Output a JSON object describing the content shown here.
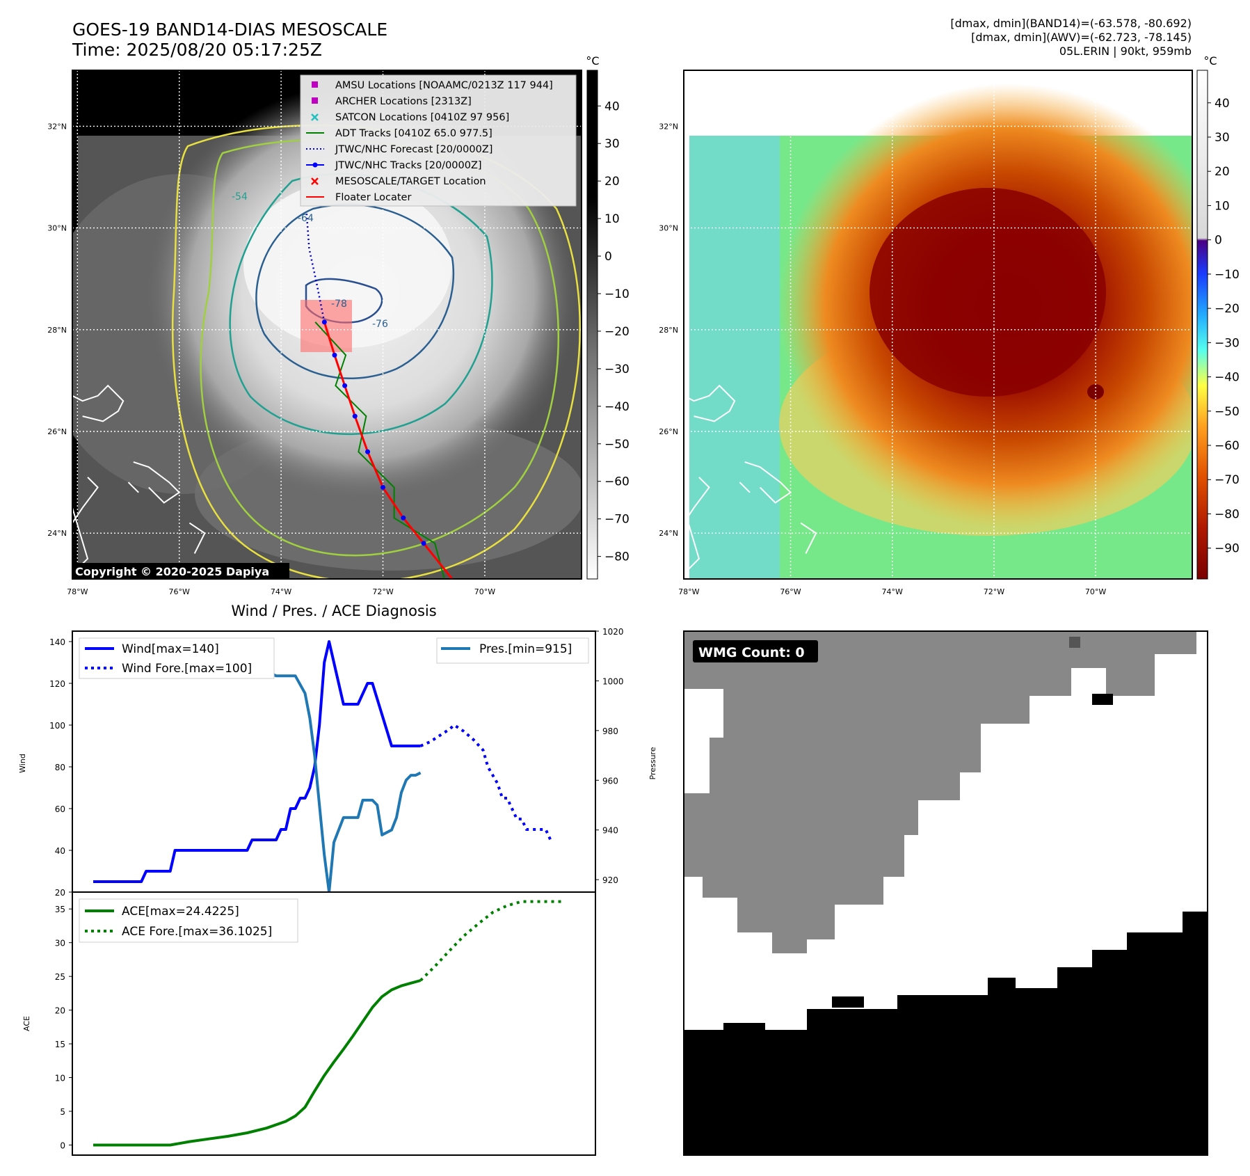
{
  "header": {
    "title_line1": "GOES-19 BAND14-DIAS MESOSCALE",
    "title_line2": "Time: 2025/08/20 05:17:25Z",
    "info_line1": "[dmax, dmin](BAND14)=(-63.578, -80.692)",
    "info_line2": "[dmax, dmin](AWV)=(-62.723, -78.145)",
    "info_line3": "05L.ERIN | 90kt, 959mb",
    "copyright": "Copyright © 2020-2025 Dapiya",
    "unit_left": "°C",
    "unit_right": "°C"
  },
  "map": {
    "lat_labels": [
      "32°N",
      "30°N",
      "28°N",
      "26°N",
      "24°N"
    ],
    "lat_values": [
      32,
      30,
      28,
      26,
      24
    ],
    "lon_labels": [
      "78°W",
      "76°W",
      "74°W",
      "72°W",
      "70°W"
    ],
    "lon_values": [
      -78,
      -76,
      -74,
      -72,
      -70
    ],
    "lon_range": [
      -78.1,
      -68.1
    ],
    "lat_range": [
      23.1,
      33.1
    ],
    "contour_labels": [
      "-54",
      "-64",
      "-76",
      "-78"
    ],
    "legend": [
      {
        "label": "AMSU Locations [NOAAMC/0213Z 117 944]",
        "marker": "square",
        "color": "#c000c0"
      },
      {
        "label": "ARCHER Locations [2313Z]",
        "marker": "square",
        "color": "#c000c0"
      },
      {
        "label": "SATCON Locations [0410Z 97 956]",
        "marker": "x",
        "color": "#20c0c0"
      },
      {
        "label": "ADT Tracks [0410Z 65.0 977.5]",
        "marker": "line",
        "color": "#008000"
      },
      {
        "label": "JTWC/NHC Forecast [20/0000Z]",
        "marker": "dotted",
        "color": "#0000cc"
      },
      {
        "label": "JTWC/NHC Tracks [20/0000Z]",
        "marker": "line-dot",
        "color": "#0000ff"
      },
      {
        "label": "MESOSCALE/TARGET Location",
        "marker": "x",
        "color": "#ff0000"
      },
      {
        "label": "Floater Locater",
        "marker": "line",
        "color": "#ff0000"
      }
    ],
    "colorbar_left_ticks": [
      "40",
      "30",
      "20",
      "10",
      "0",
      "−10",
      "−20",
      "−30",
      "−40",
      "−50",
      "−60",
      "−70",
      "−80"
    ],
    "colorbar_left_values": [
      40,
      30,
      20,
      10,
      0,
      -10,
      -20,
      -30,
      -40,
      -50,
      -60,
      -70,
      -80
    ],
    "colorbar_right_ticks": [
      "40",
      "30",
      "20",
      "10",
      "0",
      "−10",
      "−20",
      "−30",
      "−40",
      "−50",
      "−60",
      "−70",
      "−80",
      "−90"
    ],
    "colorbar_right_values": [
      40,
      30,
      20,
      10,
      0,
      -10,
      -20,
      -30,
      -40,
      -50,
      -60,
      -70,
      -80,
      -90
    ],
    "track": [
      [
        -70.6,
        23.05
      ],
      [
        -71.2,
        23.8
      ],
      [
        -71.6,
        24.3
      ],
      [
        -72.0,
        24.9
      ],
      [
        -72.3,
        25.6
      ],
      [
        -72.55,
        26.3
      ],
      [
        -72.75,
        26.9
      ],
      [
        -72.95,
        27.5
      ],
      [
        -73.15,
        28.15
      ]
    ],
    "forecast": [
      [
        -73.15,
        28.15
      ],
      [
        -73.3,
        28.9
      ],
      [
        -73.45,
        29.6
      ],
      [
        -73.5,
        30.3
      ]
    ]
  },
  "chart_data": [
    {
      "type": "line",
      "title": "Wind / Pres. / ACE Diagnosis",
      "xlabel": "",
      "ylabel": "Wind",
      "ylabel_right": "Pressure",
      "ylim": [
        20,
        145
      ],
      "ylim_right": [
        915,
        1020
      ],
      "yticks": [
        20,
        40,
        60,
        80,
        100,
        120,
        140
      ],
      "yticks_right": [
        920,
        940,
        960,
        980,
        1000,
        1020
      ],
      "x_range": [
        0,
        100
      ],
      "series": [
        {
          "name": "Wind[max=140]",
          "axis": "left",
          "style": "solid",
          "color": "#0000ff",
          "x": [
            0,
            10,
            11,
            16,
            17,
            21,
            22,
            32,
            33,
            38,
            39,
            40,
            41,
            42,
            43,
            44,
            45,
            46,
            47,
            48,
            49,
            50,
            52,
            53,
            54,
            55,
            57,
            58,
            60,
            62,
            64,
            66,
            68
          ],
          "y": [
            25,
            25,
            30,
            30,
            40,
            40,
            40,
            40,
            45,
            45,
            50,
            50,
            60,
            60,
            65,
            65,
            70,
            80,
            100,
            130,
            140,
            130,
            110,
            110,
            110,
            110,
            120,
            120,
            105,
            90,
            90,
            90,
            90
          ]
        },
        {
          "name": "Wind Fore.[max=100]",
          "axis": "left",
          "style": "dotted",
          "color": "#0000ff",
          "x": [
            68,
            70,
            72,
            74,
            75,
            77,
            79,
            81,
            82,
            84,
            85,
            86,
            88,
            89,
            90,
            92,
            94,
            95
          ],
          "y": [
            90,
            92,
            95,
            98,
            100,
            97,
            93,
            88,
            80,
            72,
            65,
            65,
            55,
            55,
            50,
            50,
            50,
            45
          ]
        },
        {
          "name": "Pres.[min=915]",
          "axis": "right",
          "style": "solid",
          "color": "#1f77b4",
          "x": [
            0,
            2,
            3,
            5,
            7,
            9,
            12,
            15,
            18,
            21,
            24,
            27,
            30,
            33,
            36,
            38,
            40,
            42,
            44,
            45,
            46,
            47,
            48,
            49,
            50,
            51,
            52,
            53,
            55,
            56,
            57,
            58,
            59,
            60,
            62,
            63,
            64,
            65,
            66,
            67,
            68
          ],
          "y": [
            1015,
            1015,
            1011,
            1010,
            1009,
            1009,
            1009,
            1008,
            1008,
            1008,
            1008,
            1007,
            1006,
            1004,
            1004,
            1002,
            1002,
            1002,
            995,
            985,
            970,
            950,
            930,
            915,
            935,
            940,
            945,
            945,
            945,
            952,
            952,
            952,
            950,
            938,
            940,
            945,
            955,
            960,
            962,
            962,
            963
          ]
        }
      ]
    },
    {
      "type": "line",
      "xlabel": "",
      "ylabel": "ACE",
      "ylim": [
        -1.5,
        37.5
      ],
      "yticks": [
        0,
        5,
        10,
        15,
        20,
        25,
        30,
        35
      ],
      "x_range": [
        0,
        100
      ],
      "series": [
        {
          "name": "ACE[max=24.4225]",
          "style": "solid",
          "color": "#008000",
          "x": [
            0,
            8,
            16,
            20,
            24,
            28,
            32,
            36,
            40,
            42,
            44,
            46,
            48,
            50,
            52,
            54,
            56,
            58,
            60,
            62,
            64,
            66,
            68
          ],
          "y": [
            0,
            0,
            0,
            0.5,
            0.9,
            1.3,
            1.8,
            2.5,
            3.5,
            4.3,
            5.6,
            8.0,
            10.3,
            12.3,
            14.2,
            16.2,
            18.3,
            20.4,
            22.0,
            23.0,
            23.6,
            24.0,
            24.4
          ]
        },
        {
          "name": "ACE Fore.[max=36.1025]",
          "style": "dotted",
          "color": "#008000",
          "x": [
            68,
            71,
            74,
            77,
            80,
            83,
            86,
            89,
            92,
            95,
            98
          ],
          "y": [
            24.4,
            26.5,
            28.8,
            31.0,
            32.8,
            34.5,
            35.5,
            36.1,
            36.1,
            36.1,
            36.1
          ]
        }
      ]
    }
  ],
  "wmg": {
    "label": "WMG Count: 0"
  }
}
